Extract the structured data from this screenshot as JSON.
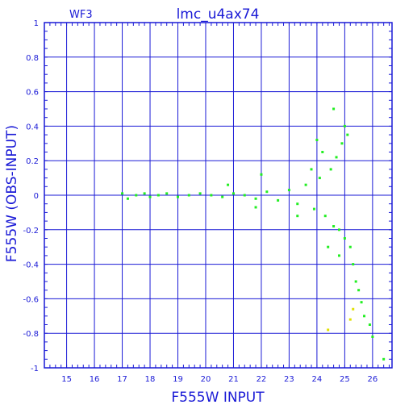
{
  "header": {
    "left_label": "WF3",
    "title": "lmc_u4ax74"
  },
  "chart_data": {
    "type": "scatter",
    "title": "lmc_u4ax74",
    "xlabel": "F555W INPUT",
    "ylabel": "F555W (OBS-INPUT)",
    "xlim": [
      14.2,
      26.7
    ],
    "ylim": [
      -1,
      1
    ],
    "xticks": [
      15,
      16,
      17,
      18,
      19,
      20,
      21,
      22,
      23,
      24,
      25,
      26
    ],
    "yticks": [
      -1,
      -0.8,
      -0.6,
      -0.4,
      -0.2,
      0,
      0.2,
      0.4,
      0.6,
      0.8,
      1
    ],
    "ytick_labels": [
      "-1",
      "-0.8",
      "-0.6",
      "-0.4",
      "-0.2",
      "0",
      "0.2",
      "0.4",
      "0.6",
      "0.8",
      "1"
    ],
    "grid": true,
    "colors": {
      "axes": "#1a1ad6",
      "points": "#22ee22",
      "outliers": "#e0e000"
    },
    "series": [
      {
        "name": "",
        "color": "#22ee22",
        "points": [
          [
            17.0,
            0.01
          ],
          [
            17.2,
            -0.02
          ],
          [
            17.5,
            0.0
          ],
          [
            17.8,
            0.01
          ],
          [
            18.0,
            -0.01
          ],
          [
            18.3,
            0.0
          ],
          [
            18.6,
            0.01
          ],
          [
            19.0,
            -0.01
          ],
          [
            19.4,
            0.0
          ],
          [
            19.8,
            0.01
          ],
          [
            20.2,
            0.0
          ],
          [
            20.6,
            -0.01
          ],
          [
            21.0,
            0.01
          ],
          [
            21.4,
            0.0
          ],
          [
            21.8,
            -0.02
          ],
          [
            22.2,
            0.02
          ],
          [
            22.6,
            -0.03
          ],
          [
            23.0,
            0.03
          ],
          [
            23.3,
            -0.05
          ],
          [
            23.6,
            0.06
          ],
          [
            23.9,
            -0.08
          ],
          [
            24.1,
            0.1
          ],
          [
            24.3,
            -0.12
          ],
          [
            24.5,
            0.15
          ],
          [
            24.6,
            -0.18
          ],
          [
            24.7,
            0.22
          ],
          [
            24.8,
            -0.2
          ],
          [
            24.9,
            0.3
          ],
          [
            25.0,
            -0.25
          ],
          [
            25.1,
            0.35
          ],
          [
            25.2,
            -0.3
          ],
          [
            25.3,
            -0.4
          ],
          [
            25.4,
            -0.5
          ],
          [
            25.5,
            -0.55
          ],
          [
            25.6,
            -0.62
          ],
          [
            25.7,
            -0.7
          ],
          [
            24.6,
            0.5
          ],
          [
            24.2,
            0.25
          ],
          [
            23.8,
            0.15
          ],
          [
            24.4,
            -0.3
          ],
          [
            24.8,
            -0.35
          ],
          [
            25.9,
            -0.75
          ],
          [
            26.0,
            -0.82
          ],
          [
            26.4,
            -0.95
          ],
          [
            22.0,
            0.12
          ],
          [
            20.8,
            0.06
          ],
          [
            21.8,
            -0.07
          ],
          [
            23.3,
            -0.12
          ],
          [
            24.0,
            0.32
          ],
          [
            25.0,
            0.4
          ]
        ]
      },
      {
        "name": "",
        "color": "#e0e000",
        "points": [
          [
            25.2,
            -0.72
          ],
          [
            25.3,
            -0.66
          ],
          [
            24.4,
            -0.78
          ]
        ]
      }
    ]
  }
}
